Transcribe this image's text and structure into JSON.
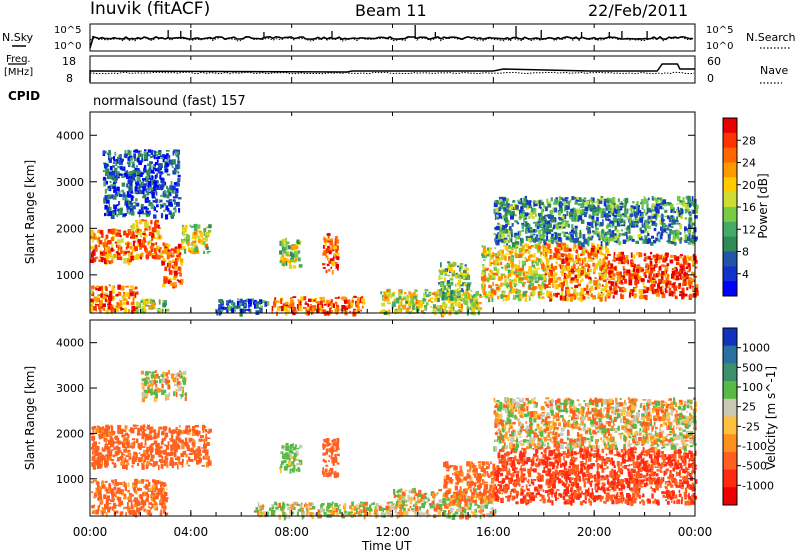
{
  "header": {
    "station": "Inuvik (fitACF)",
    "beam": "Beam 11",
    "date": "22/Feb/2011"
  },
  "noise_panel": {
    "left_label": "N.Sky",
    "right_label": "N.Search",
    "left_ticks": [
      "10^5",
      "10^0"
    ],
    "right_ticks": [
      "10^5",
      "10^0"
    ]
  },
  "freq_panel": {
    "left_label_1": "Freq.",
    "left_label_2": "[MHz]",
    "right_label": "Nave",
    "left_ticks": [
      "18",
      "8"
    ],
    "right_ticks": [
      "60",
      "0"
    ]
  },
  "cpid": {
    "label": "CPID",
    "mode": "normalsound (fast) 157"
  },
  "power_panel": {
    "ylabel": "Slant Range [km]",
    "yticks": [
      "4000",
      "3000",
      "2000",
      "1000"
    ],
    "colorbar_label": "Power [dB]",
    "colorbar_ticks": [
      "28",
      "24",
      "20",
      "16",
      "12",
      "8",
      "4"
    ],
    "colorbar_colors": [
      "#e60000",
      "#ff3300",
      "#ff6600",
      "#ff9900",
      "#ffcc00",
      "#ccdd33",
      "#77cc44",
      "#44aa66",
      "#2e8b57",
      "#2255aa",
      "#1133cc",
      "#0000ff"
    ]
  },
  "velocity_panel": {
    "ylabel": "Slant Range [km]",
    "yticks": [
      "4000",
      "3000",
      "2000",
      "1000"
    ],
    "colorbar_label": "Velocity [m s^-1]",
    "colorbar_ticks": [
      "1000",
      "500",
      "100",
      "25",
      "-25",
      "-100",
      "-500",
      "-1000"
    ],
    "colorbar_colors": [
      "#1133bb",
      "#2a6fa0",
      "#3d8f6a",
      "#55bb44",
      "#c8c8b4",
      "#ffc040",
      "#ff9020",
      "#ff6020",
      "#ff2a10",
      "#ee0000"
    ]
  },
  "x_axis": {
    "ticks": [
      "00:00",
      "04:00",
      "08:00",
      "12:00",
      "16:00",
      "20:00",
      "00:00"
    ],
    "label": "Time UT"
  },
  "chart_data": {
    "type": "heatmap",
    "x_range_hours": [
      0,
      24
    ],
    "y_range_km": [
      180,
      4500
    ],
    "power_regions": [
      {
        "t": [
          0.0,
          1.6
        ],
        "r": [
          1300,
          2000
        ],
        "level": 0.8
      },
      {
        "t": [
          1.6,
          2.8
        ],
        "r": [
          1400,
          2200
        ],
        "level": 0.75
      },
      {
        "t": [
          2.8,
          3.6
        ],
        "r": [
          800,
          1700
        ],
        "level": 0.85
      },
      {
        "t": [
          3.6,
          4.7
        ],
        "r": [
          1500,
          2100
        ],
        "level": 0.55
      },
      {
        "t": [
          0.0,
          1.8
        ],
        "r": [
          250,
          800
        ],
        "level": 0.8
      },
      {
        "t": [
          1.8,
          3.0
        ],
        "r": [
          250,
          500
        ],
        "level": 0.45
      },
      {
        "t": [
          0.5,
          3.5
        ],
        "r": [
          2300,
          3700
        ],
        "level": 0.15
      },
      {
        "t": [
          7.5,
          8.3
        ],
        "r": [
          1200,
          1800
        ],
        "level": 0.5
      },
      {
        "t": [
          9.2,
          9.8
        ],
        "r": [
          1100,
          1900
        ],
        "level": 0.85
      },
      {
        "t": [
          7.2,
          10.8
        ],
        "r": [
          200,
          550
        ],
        "level": 0.85
      },
      {
        "t": [
          5.0,
          7.0
        ],
        "r": [
          200,
          500
        ],
        "level": 0.2
      },
      {
        "t": [
          11.5,
          15.5
        ],
        "r": [
          200,
          700
        ],
        "level": 0.55
      },
      {
        "t": [
          13.8,
          15.0
        ],
        "r": [
          500,
          1300
        ],
        "level": 0.45
      },
      {
        "t": [
          15.5,
          18.0
        ],
        "r": [
          500,
          1700
        ],
        "level": 0.6
      },
      {
        "t": [
          18.0,
          20.5
        ],
        "r": [
          500,
          1700
        ],
        "level": 0.75
      },
      {
        "t": [
          20.5,
          24.0
        ],
        "r": [
          550,
          1500
        ],
        "level": 0.9
      },
      {
        "t": [
          16.0,
          24.0
        ],
        "r": [
          1700,
          2700
        ],
        "level": 0.3
      }
    ],
    "velocity_regions": [
      {
        "t": [
          0.0,
          4.7
        ],
        "r": [
          1300,
          2200
        ],
        "v": -250
      },
      {
        "t": [
          0.0,
          3.0
        ],
        "r": [
          250,
          1000
        ],
        "v": -200
      },
      {
        "t": [
          2.0,
          3.8
        ],
        "r": [
          2800,
          3400
        ],
        "v": 10
      },
      {
        "t": [
          7.5,
          8.3
        ],
        "r": [
          1200,
          1800
        ],
        "v": 200
      },
      {
        "t": [
          9.2,
          9.8
        ],
        "r": [
          1100,
          1900
        ],
        "v": -300
      },
      {
        "t": [
          6.5,
          12.0
        ],
        "r": [
          200,
          500
        ],
        "v": 60
      },
      {
        "t": [
          12.0,
          16.0
        ],
        "r": [
          200,
          800
        ],
        "v": 30
      },
      {
        "t": [
          14.0,
          16.0
        ],
        "r": [
          500,
          1400
        ],
        "v": -200
      },
      {
        "t": [
          16.0,
          24.0
        ],
        "r": [
          500,
          1700
        ],
        "v": -500
      },
      {
        "t": [
          16.0,
          24.0
        ],
        "r": [
          1700,
          2800
        ],
        "v": 0
      }
    ]
  }
}
